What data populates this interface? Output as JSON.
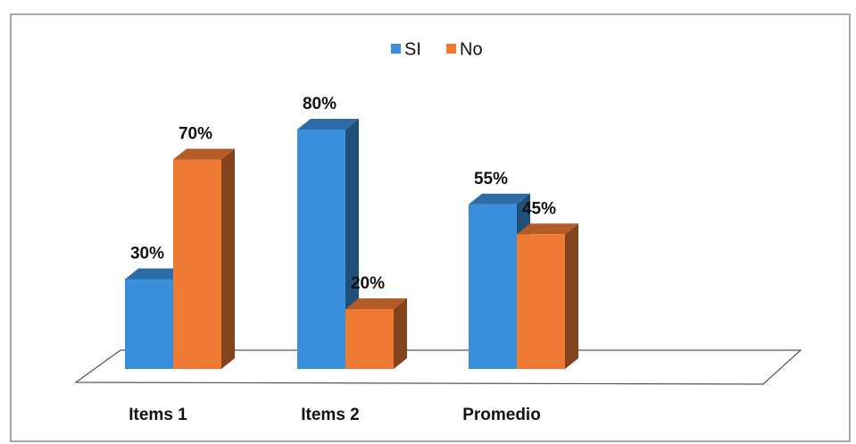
{
  "chart_data": {
    "type": "bar3d",
    "categories": [
      "Items 1",
      "Items 2",
      "Promedio"
    ],
    "series": [
      {
        "name": "SI",
        "color": "#3a8fdc",
        "values": [
          30,
          80,
          55
        ],
        "value_labels": [
          "30%",
          "80%",
          "55%"
        ]
      },
      {
        "name": "No",
        "color": "#ef7a34",
        "values": [
          70,
          20,
          45
        ],
        "value_labels": [
          "70%",
          "20%",
          "45%"
        ]
      }
    ],
    "legend": "top"
  }
}
